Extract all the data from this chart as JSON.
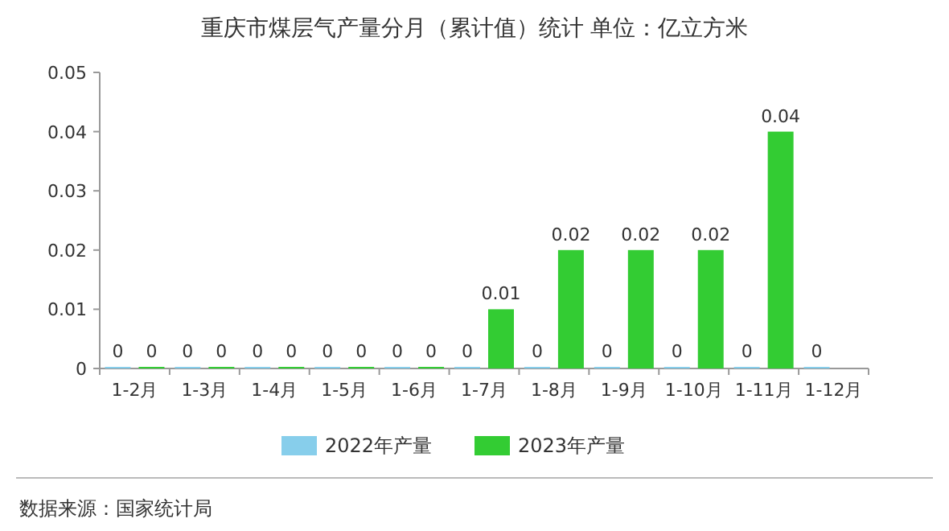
{
  "chart_data": {
    "type": "bar",
    "title": "重庆市煤层气产量分月（累计值）统计 单位：亿立方米",
    "categories": [
      "1-2月",
      "1-3月",
      "1-4月",
      "1-5月",
      "1-6月",
      "1-7月",
      "1-8月",
      "1-9月",
      "1-10月",
      "1-11月",
      "1-12月"
    ],
    "series": [
      {
        "name": "2022年产量",
        "color": "#87ceeb",
        "values": [
          0,
          0,
          0,
          0,
          0,
          0,
          0,
          0,
          0,
          0,
          0
        ]
      },
      {
        "name": "2023年产量",
        "color": "#33cc33",
        "values": [
          0,
          0,
          0,
          0,
          0,
          0.01,
          0.02,
          0.02,
          0.02,
          0.04,
          null
        ]
      }
    ],
    "ylim": [
      0,
      0.05
    ],
    "yticks": [
      0,
      0.01,
      0.02,
      0.03,
      0.04,
      0.05
    ],
    "data_labels": true,
    "legend": "bottom",
    "annotations": [
      "数据来源：国家统计局"
    ]
  }
}
